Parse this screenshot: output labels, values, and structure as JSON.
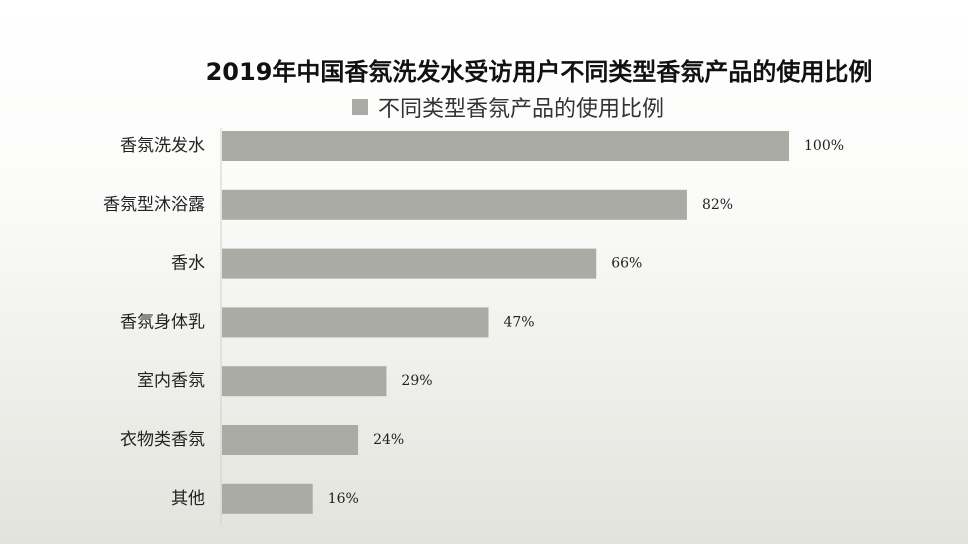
{
  "chart_data": {
    "type": "bar",
    "orientation": "horizontal",
    "title": "2019年中国香氛洗发水受访用户不同类型香氛产品的使用比例",
    "categories": [
      "香氛洗发水",
      "香氛型沐浴露",
      "香水",
      "香氛身体乳",
      "室内香氛",
      "衣物类香氛",
      "其他"
    ],
    "series": [
      {
        "name": "不同类型香氛产品的使用比例",
        "values": [
          100,
          82,
          66,
          47,
          29,
          24,
          16
        ],
        "labels": [
          "100%",
          "82%",
          "66%",
          "47%",
          "29%",
          "24%",
          "16%"
        ],
        "color": "#a9aba4"
      }
    ],
    "xlim": [
      0,
      100
    ],
    "grid": false,
    "legend_position": "top"
  }
}
